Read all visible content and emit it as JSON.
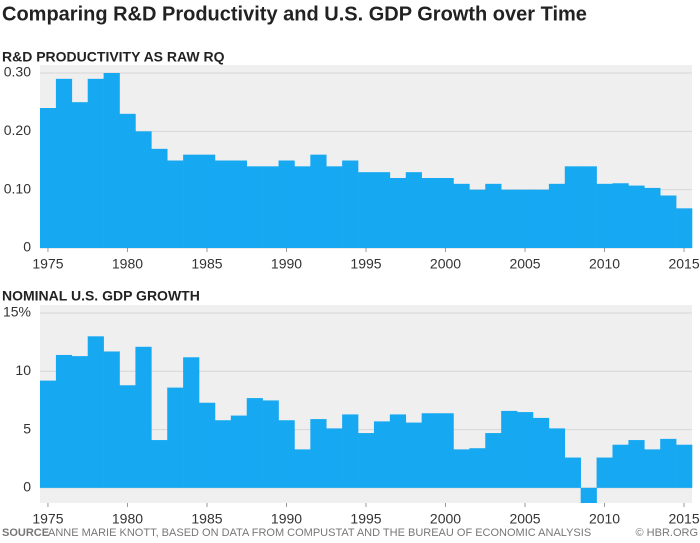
{
  "title": "Comparing R&D Productivity and U.S. GDP Growth over Time",
  "chart_data": [
    {
      "type": "bar",
      "title": "R&D PRODUCTIVITY AS RAW RQ",
      "color": "#17a8f2",
      "grid": true,
      "x": [
        1975,
        1976,
        1977,
        1978,
        1979,
        1980,
        1981,
        1982,
        1983,
        1984,
        1985,
        1986,
        1987,
        1988,
        1989,
        1990,
        1991,
        1992,
        1993,
        1994,
        1995,
        1996,
        1997,
        1998,
        1999,
        2000,
        2001,
        2002,
        2003,
        2004,
        2005,
        2006,
        2007,
        2008,
        2009,
        2010,
        2011,
        2012,
        2013,
        2014,
        2015
      ],
      "values": [
        0.24,
        0.29,
        0.25,
        0.29,
        0.3,
        0.23,
        0.2,
        0.17,
        0.15,
        0.16,
        0.16,
        0.15,
        0.15,
        0.14,
        0.14,
        0.15,
        0.14,
        0.16,
        0.14,
        0.15,
        0.13,
        0.13,
        0.12,
        0.13,
        0.12,
        0.12,
        0.11,
        0.1,
        0.11,
        0.1,
        0.1,
        0.1,
        0.11,
        0.14,
        0.14,
        0.11,
        0.111,
        0.107,
        0.103,
        0.09,
        0.068
      ],
      "xlim": [
        1974.5,
        2015.5
      ],
      "xticks": [
        1975,
        1980,
        1985,
        1990,
        1995,
        2000,
        2005,
        2010,
        2015
      ],
      "ylim": [
        0,
        0.3
      ],
      "yticks": [
        0,
        {
          "value": 0.1,
          "label": "0.10"
        },
        {
          "value": 0.2,
          "label": "0.20"
        },
        {
          "value": 0.3,
          "label": "0.30"
        }
      ]
    },
    {
      "type": "bar",
      "title": "NOMINAL U.S. GDP GROWTH",
      "color": "#17a8f2",
      "grid": true,
      "x": [
        1975,
        1976,
        1977,
        1978,
        1979,
        1980,
        1981,
        1982,
        1983,
        1984,
        1985,
        1986,
        1987,
        1988,
        1989,
        1990,
        1991,
        1992,
        1993,
        1994,
        1995,
        1996,
        1997,
        1998,
        1999,
        2000,
        2001,
        2002,
        2003,
        2004,
        2005,
        2006,
        2007,
        2008,
        2009,
        2010,
        2011,
        2012,
        2013,
        2014,
        2015
      ],
      "values": [
        9.2,
        11.4,
        11.3,
        13.0,
        11.7,
        8.8,
        12.1,
        4.1,
        8.6,
        11.2,
        7.3,
        5.8,
        6.2,
        7.7,
        7.5,
        5.8,
        3.3,
        5.9,
        5.1,
        6.3,
        4.7,
        5.7,
        6.3,
        5.6,
        6.4,
        6.4,
        3.3,
        3.4,
        4.7,
        6.6,
        6.5,
        6.0,
        5.1,
        2.6,
        -1.3,
        2.6,
        3.7,
        4.1,
        3.3,
        4.2,
        3.7
      ],
      "xlim": [
        1974.5,
        2015.5
      ],
      "xticks": [
        1975,
        1980,
        1985,
        1990,
        1995,
        2000,
        2005,
        2010,
        2015
      ],
      "ylim": [
        -1.3,
        15
      ],
      "yticks": [
        0,
        5,
        10,
        {
          "value": 15,
          "label": "15%"
        }
      ]
    }
  ],
  "source_label": "SOURCE",
  "source": "ANNE MARIE KNOTT, BASED ON DATA FROM COMPUSTAT AND THE BUREAU OF ECONOMIC ANALYSIS",
  "credit": "© HBR.ORG"
}
